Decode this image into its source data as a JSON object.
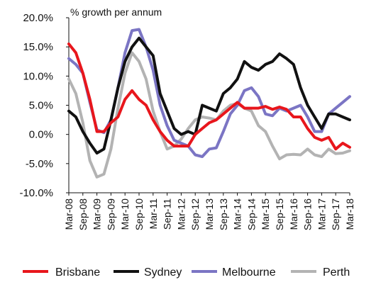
{
  "chart_data": {
    "type": "line",
    "unit_label": "% growth per annum",
    "x_tick_labels": [
      "Mar-08",
      "Sep-08",
      "Mar-09",
      "Sep-09",
      "Mar-10",
      "Sep-10",
      "Mar-11",
      "Sep-11",
      "Mar-12",
      "Sep-12",
      "Mar-13",
      "Sep-13",
      "Mar-14",
      "Sep-14",
      "Mar-15",
      "Sep-15",
      "Mar-16",
      "Sep-16",
      "Mar-17",
      "Sep-17",
      "Mar-18"
    ],
    "y_tick_labels": [
      "20.0%",
      "15.0%",
      "10.0%",
      "5.0%",
      "0.0%",
      "-5.0%",
      "-10.0%"
    ],
    "y_ticks": [
      20,
      15,
      10,
      5,
      0,
      -5,
      -10
    ],
    "ylim": [
      -10,
      20
    ],
    "x_quarters": [
      "Mar-08",
      "Jun-08",
      "Sep-08",
      "Dec-08",
      "Mar-09",
      "Jun-09",
      "Sep-09",
      "Dec-09",
      "Mar-10",
      "Jun-10",
      "Sep-10",
      "Dec-10",
      "Mar-11",
      "Jun-11",
      "Sep-11",
      "Dec-11",
      "Mar-12",
      "Jun-12",
      "Sep-12",
      "Dec-12",
      "Mar-13",
      "Jun-13",
      "Sep-13",
      "Dec-13",
      "Mar-14",
      "Jun-14",
      "Sep-14",
      "Dec-14",
      "Mar-15",
      "Jun-15",
      "Sep-15",
      "Dec-15",
      "Mar-16",
      "Jun-16",
      "Sep-16",
      "Dec-16",
      "Mar-17",
      "Jun-17",
      "Sep-17",
      "Dec-17",
      "Mar-18"
    ],
    "legend_position": "bottom",
    "grid": false,
    "series": [
      {
        "name": "Brisbane",
        "color": "#e8161c",
        "values": [
          15.5,
          14.0,
          10.5,
          6.0,
          0.5,
          0.5,
          2.0,
          3.0,
          6.0,
          7.5,
          6.0,
          5.0,
          2.5,
          0.5,
          -1.0,
          -2.0,
          -2.0,
          -2.0,
          0.0,
          1.0,
          2.0,
          2.5,
          3.5,
          4.5,
          5.5,
          4.5,
          4.5,
          4.5,
          4.8,
          4.3,
          4.7,
          4.3,
          3.0,
          3.0,
          1.0,
          -0.5,
          -1.0,
          -0.5,
          -2.5,
          -1.5,
          -2.2
        ]
      },
      {
        "name": "Sydney",
        "color": "#111111",
        "values": [
          4.0,
          3.0,
          0.5,
          -1.5,
          -3.2,
          -2.5,
          2.5,
          8.0,
          12.5,
          15.0,
          16.5,
          15.0,
          13.5,
          7.0,
          4.0,
          1.0,
          0.0,
          0.5,
          0.0,
          5.0,
          4.5,
          4.0,
          7.0,
          8.0,
          9.5,
          12.5,
          11.5,
          11.0,
          12.0,
          12.5,
          13.8,
          13.0,
          12.0,
          8.0,
          5.0,
          3.0,
          1.0,
          3.5,
          3.5,
          3.0,
          2.5
        ]
      },
      {
        "name": "Melbourne",
        "color": "#7b75c4",
        "values": [
          13.0,
          12.0,
          10.5,
          5.5,
          0.8,
          0.3,
          2.5,
          8.0,
          14.0,
          17.8,
          18.0,
          15.0,
          11.0,
          5.0,
          1.5,
          -1.0,
          -1.5,
          -2.0,
          -3.5,
          -3.8,
          -2.5,
          -2.3,
          0.5,
          3.5,
          5.0,
          7.5,
          8.0,
          6.5,
          3.5,
          3.2,
          4.5,
          4.0,
          4.5,
          5.0,
          3.0,
          0.5,
          0.5,
          3.5,
          4.5,
          5.5,
          6.5
        ]
      },
      {
        "name": "Perth",
        "color": "#b3b3b3",
        "values": [
          9.5,
          7.0,
          2.0,
          -4.5,
          -7.3,
          -6.8,
          -2.5,
          4.5,
          10.5,
          14.0,
          12.5,
          9.5,
          4.0,
          0.5,
          -2.5,
          -2.0,
          -0.8,
          1.0,
          2.5,
          3.0,
          2.8,
          2.5,
          4.0,
          5.0,
          5.3,
          4.5,
          4.0,
          1.5,
          0.5,
          -2.0,
          -4.2,
          -3.5,
          -3.4,
          -3.5,
          -2.5,
          -3.5,
          -3.8,
          -2.5,
          -3.3,
          -3.2,
          -2.8
        ]
      }
    ]
  }
}
